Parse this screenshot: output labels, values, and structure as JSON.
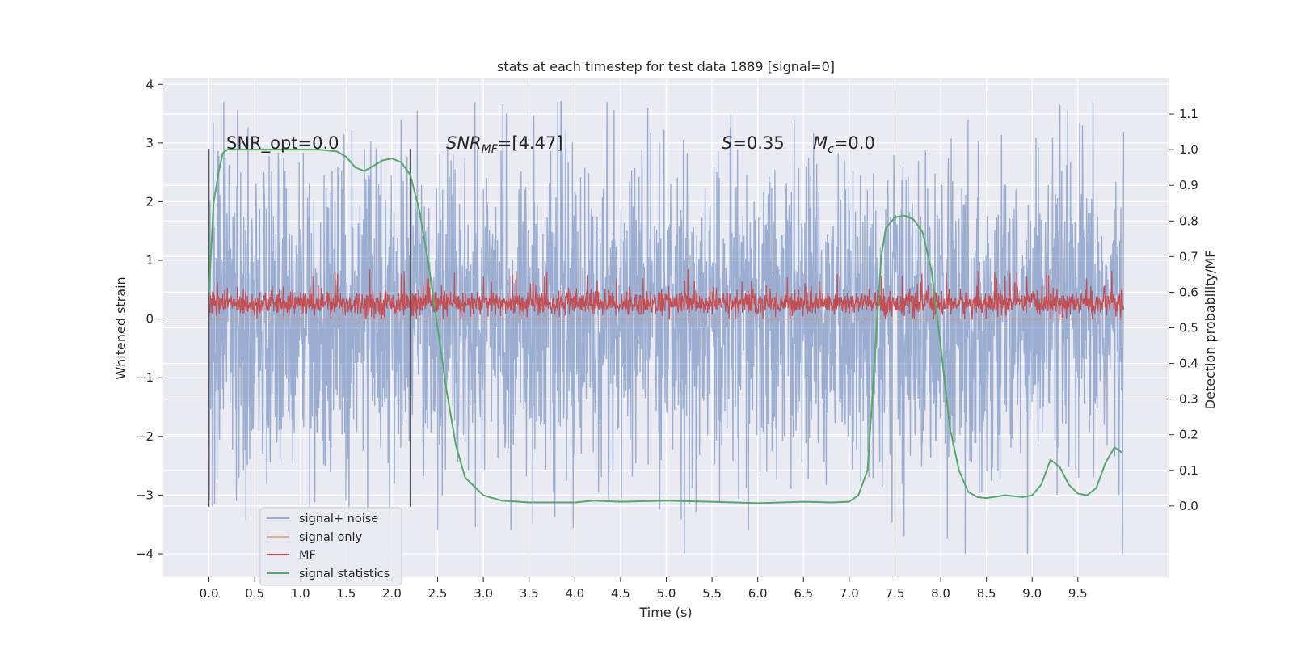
{
  "chart_data": {
    "type": "line",
    "title": "stats at each timestep for test data 1889 [signal=0]",
    "xlabel": "Time (s)",
    "ylabel_left": "Whitened strain",
    "ylabel_right": "Detection probability/MF",
    "xlim": [
      -0.5,
      10.5
    ],
    "ylim_left": [
      -4.4,
      4.1
    ],
    "ylim_right": [
      -0.2,
      1.2
    ],
    "x_ticks": [
      "0.0",
      "0.5",
      "1.0",
      "1.5",
      "2.0",
      "2.5",
      "3.0",
      "3.5",
      "4.0",
      "4.5",
      "5.0",
      "5.5",
      "6.0",
      "6.5",
      "7.0",
      "7.5",
      "8.0",
      "8.5",
      "9.0",
      "9.5"
    ],
    "y_ticks_left": [
      "4",
      "3",
      "2",
      "1",
      "0",
      "−1",
      "−2",
      "−3",
      "−4"
    ],
    "y_ticks_right": [
      "1.1",
      "1.0",
      "0.9",
      "0.8",
      "0.7",
      "0.6",
      "0.5",
      "0.4",
      "0.3",
      "0.2",
      "0.1",
      "0.0"
    ],
    "grid": true,
    "legend_position": "lower-left",
    "annotations": {
      "snr_opt": "SNR_opt=0.0",
      "snr_mf_sym": "SNR",
      "snr_mf_sub": "MF",
      "snr_mf_val": "=[4.47]",
      "s_sym": "S",
      "s_val": "=0.35",
      "mc_sym": "M",
      "mc_sub": "c",
      "mc_val": "=0.0"
    },
    "vertical_lines_x": [
      0.0,
      2.2
    ],
    "series": [
      {
        "name": "signal+ noise",
        "color": "#4c72b0",
        "axis": "left",
        "description_only": true,
        "x_range": [
          0.0,
          10.0
        ],
        "typical_band": [
          -1.7,
          1.7
        ],
        "extremes": [
          -4.0,
          3.7
        ],
        "sample_peaks": [
          [
            0.05,
            2.0
          ],
          [
            0.3,
            -3.1
          ],
          [
            0.6,
            2.5
          ],
          [
            1.1,
            -3.2
          ],
          [
            1.7,
            2.9
          ],
          [
            2.1,
            3.4
          ],
          [
            2.5,
            -3.6
          ],
          [
            3.25,
            3.5
          ],
          [
            3.3,
            -3.6
          ],
          [
            3.85,
            3.7
          ],
          [
            4.35,
            3.7
          ],
          [
            5.2,
            -4.0
          ],
          [
            5.9,
            -3.6
          ],
          [
            6.4,
            3.4
          ],
          [
            7.6,
            -3.7
          ],
          [
            8.3,
            3.4
          ],
          [
            8.95,
            -4.0
          ],
          [
            9.55,
            3.3
          ],
          [
            9.95,
            -3.0
          ]
        ]
      },
      {
        "name": "signal only",
        "color": "#dd8452",
        "axis": "left",
        "x": [
          0.0,
          10.0
        ],
        "y": [
          0.0,
          0.0
        ]
      },
      {
        "name": "MF",
        "color": "#c44e52",
        "axis": "left",
        "description_only": true,
        "x_range": [
          0.0,
          10.0
        ],
        "typical_band": [
          0.05,
          0.5
        ],
        "extremes": [
          0.0,
          0.9
        ]
      },
      {
        "name": "signal statistics",
        "color": "#55a868",
        "axis": "right",
        "x": [
          0.0,
          0.05,
          0.1,
          0.15,
          0.2,
          0.4,
          0.8,
          1.2,
          1.4,
          1.5,
          1.6,
          1.7,
          1.8,
          1.9,
          2.0,
          2.1,
          2.2,
          2.3,
          2.4,
          2.5,
          2.6,
          2.7,
          2.8,
          3.0,
          3.2,
          3.5,
          4.0,
          4.2,
          4.5,
          5.0,
          5.5,
          6.0,
          6.5,
          6.8,
          7.0,
          7.1,
          7.2,
          7.3,
          7.35,
          7.4,
          7.5,
          7.6,
          7.7,
          7.8,
          7.9,
          8.0,
          8.1,
          8.2,
          8.3,
          8.4,
          8.5,
          8.7,
          8.9,
          9.0,
          9.1,
          9.2,
          9.3,
          9.4,
          9.5,
          9.6,
          9.7,
          9.8,
          9.9,
          9.98
        ],
        "y": [
          0.6,
          0.85,
          0.93,
          0.99,
          1.0,
          1.0,
          1.0,
          1.0,
          0.995,
          0.98,
          0.95,
          0.94,
          0.955,
          0.97,
          0.975,
          0.965,
          0.93,
          0.83,
          0.68,
          0.5,
          0.32,
          0.17,
          0.08,
          0.03,
          0.015,
          0.01,
          0.01,
          0.015,
          0.012,
          0.015,
          0.012,
          0.008,
          0.012,
          0.01,
          0.012,
          0.03,
          0.1,
          0.5,
          0.7,
          0.78,
          0.81,
          0.815,
          0.805,
          0.77,
          0.66,
          0.45,
          0.22,
          0.1,
          0.04,
          0.025,
          0.022,
          0.03,
          0.025,
          0.03,
          0.06,
          0.13,
          0.11,
          0.06,
          0.035,
          0.03,
          0.05,
          0.12,
          0.165,
          0.15
        ]
      }
    ]
  }
}
